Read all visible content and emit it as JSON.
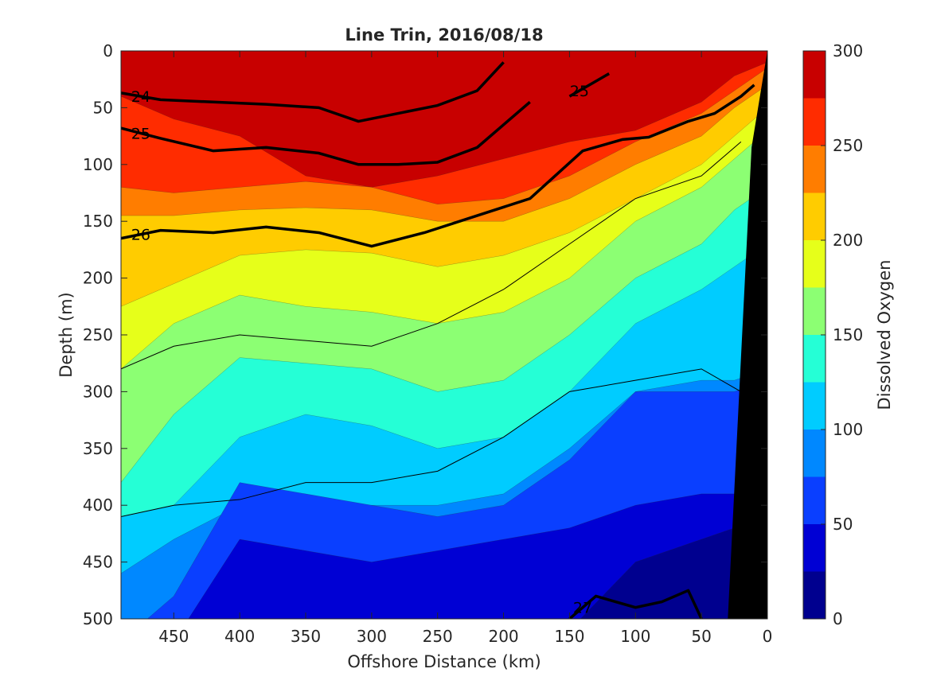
{
  "chart_data": {
    "type": "heatmap",
    "title": "Line Trin, 2016/08/18",
    "xlabel": "Offshore Distance (km)",
    "ylabel": "Depth (m)",
    "xlim": [
      490,
      0
    ],
    "ylim": [
      0,
      500
    ],
    "x_reversed": true,
    "y_reversed": true,
    "xticks": [
      450,
      400,
      350,
      300,
      250,
      200,
      150,
      100,
      50,
      0
    ],
    "yticks": [
      0,
      50,
      100,
      150,
      200,
      250,
      300,
      350,
      400,
      450,
      500
    ],
    "colorbar": {
      "label": "Dissolved Oxygen",
      "range": [
        0,
        300
      ],
      "ticks": [
        0,
        50,
        100,
        150,
        200,
        250,
        300
      ],
      "levels": [
        0,
        25,
        50,
        75,
        100,
        125,
        150,
        175,
        200,
        225,
        250,
        275,
        300
      ],
      "colors": [
        "#00008f",
        "#0000d4",
        "#0a3fff",
        "#0088ff",
        "#00ccff",
        "#25ffd6",
        "#8cff73",
        "#e6ff1a",
        "#ffcc00",
        "#ff7d00",
        "#ff2c00",
        "#c80000"
      ]
    },
    "oxygen_boundaries": [
      {
        "level": 275,
        "depth": [
          40,
          60,
          75,
          110,
          120,
          110,
          95,
          80,
          70,
          45,
          22,
          10
        ]
      },
      {
        "level": 250,
        "depth": [
          120,
          125,
          120,
          115,
          120,
          135,
          130,
          110,
          80,
          55,
          35,
          15
        ]
      },
      {
        "level": 225,
        "depth": [
          145,
          145,
          140,
          138,
          140,
          150,
          150,
          130,
          100,
          75,
          50,
          30
        ]
      },
      {
        "level": 200,
        "depth": [
          225,
          205,
          180,
          175,
          178,
          190,
          180,
          160,
          130,
          100,
          75,
          50
        ]
      },
      {
        "level": 175,
        "depth": [
          280,
          240,
          215,
          225,
          230,
          240,
          230,
          200,
          150,
          120,
          95,
          70
        ]
      },
      {
        "level": 150,
        "depth": [
          380,
          320,
          270,
          275,
          280,
          300,
          290,
          250,
          200,
          170,
          140,
          120
        ]
      },
      {
        "level": 125,
        "depth": [
          410,
          400,
          340,
          320,
          330,
          350,
          340,
          300,
          240,
          210,
          190,
          170
        ]
      },
      {
        "level": 100,
        "depth": [
          460,
          430,
          400,
          410,
          400,
          400,
          390,
          350,
          300,
          290,
          290,
          280
        ]
      },
      {
        "level": 75,
        "depth": [
          520,
          480,
          380,
          390,
          400,
          410,
          400,
          360,
          300,
          300,
          300,
          290
        ]
      },
      {
        "level": 50,
        "depth": [
          520,
          520,
          430,
          440,
          450,
          440,
          430,
          420,
          400,
          390,
          390,
          400
        ]
      },
      {
        "level": 25,
        "depth": [
          520,
          520,
          520,
          520,
          520,
          520,
          520,
          510,
          450,
          430,
          420,
          470
        ]
      }
    ],
    "boundary_x": [
      490,
      450,
      400,
      350,
      300,
      250,
      200,
      150,
      100,
      50,
      25,
      0
    ],
    "density_contours": [
      {
        "label": "24",
        "x": [
          490,
          460,
          420,
          380,
          340,
          310,
          280,
          250,
          220,
          200
        ],
        "depth": [
          37,
          43,
          45,
          47,
          50,
          62,
          55,
          48,
          35,
          10
        ]
      },
      {
        "label": "25",
        "x": [
          490,
          460,
          420,
          380,
          340,
          310,
          280,
          250,
          220,
          200,
          180
        ],
        "depth": [
          68,
          77,
          88,
          85,
          90,
          100,
          100,
          98,
          85,
          65,
          45
        ]
      },
      {
        "label": "25",
        "x": [
          150,
          135,
          120
        ],
        "depth": [
          40,
          30,
          20
        ]
      },
      {
        "label": "26",
        "x": [
          490,
          460,
          420,
          380,
          340,
          300,
          260,
          220,
          180,
          140,
          110,
          90,
          60,
          40,
          20,
          10
        ],
        "depth": [
          165,
          158,
          160,
          155,
          160,
          172,
          160,
          145,
          130,
          88,
          78,
          76,
          62,
          55,
          40,
          30
        ]
      },
      {
        "label": "27",
        "x": [
          150,
          130,
          100,
          80,
          60,
          50
        ],
        "depth": [
          500,
          480,
          490,
          485,
          475,
          500
        ]
      }
    ],
    "thin_contours": [
      {
        "x": [
          490,
          450,
          400,
          350,
          300,
          250,
          200,
          150,
          100,
          50,
          20
        ],
        "depth": [
          280,
          260,
          250,
          255,
          260,
          240,
          210,
          170,
          130,
          110,
          80
        ]
      },
      {
        "x": [
          490,
          450,
          400,
          350,
          300,
          250,
          200,
          150,
          100,
          50,
          20
        ],
        "depth": [
          410,
          400,
          395,
          380,
          380,
          370,
          340,
          300,
          290,
          280,
          300
        ]
      }
    ]
  }
}
